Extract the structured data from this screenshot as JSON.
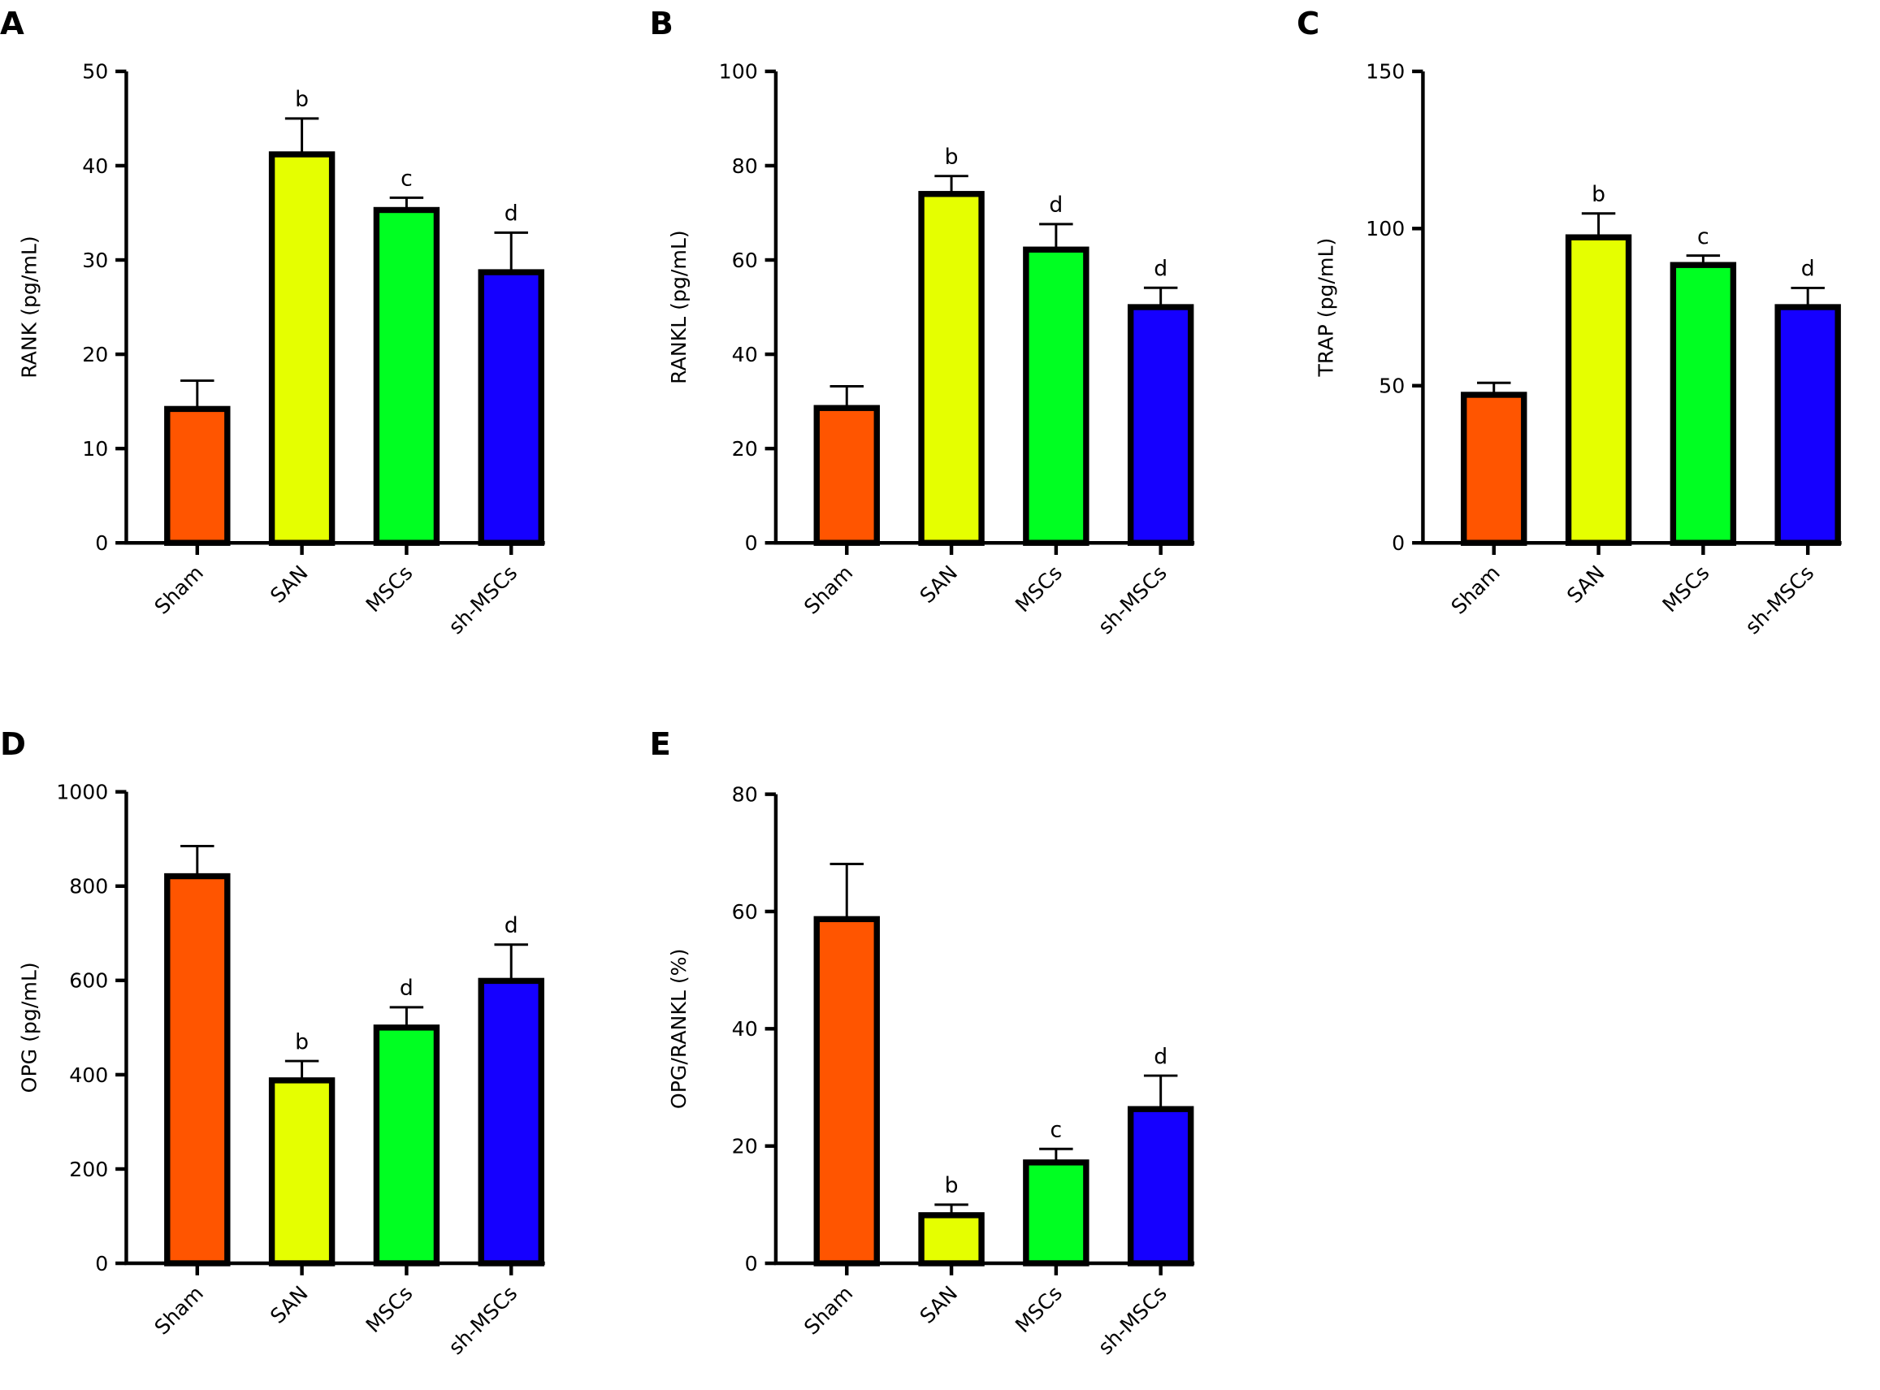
{
  "colors": {
    "Sham": "#ff5500",
    "SAN": "#e5ff00",
    "MSCs": "#00ff22",
    "sh-MSCs": "#1500ff"
  },
  "chart_data": [
    {
      "panel": "A",
      "type": "bar",
      "categories": [
        "Sham",
        "SAN",
        "MSCs",
        "sh-MSCs"
      ],
      "values": [
        14.2,
        41.2,
        35.3,
        28.7
      ],
      "errors": [
        3.0,
        3.8,
        1.3,
        4.2
      ],
      "sig_labels": [
        "",
        "b",
        "c",
        "d"
      ],
      "ylabel": "RANK (pg/mL)",
      "ylim": [
        0,
        50
      ],
      "yticks": [
        0,
        10,
        20,
        30,
        40,
        50
      ]
    },
    {
      "panel": "B",
      "type": "bar",
      "categories": [
        "Sham",
        "SAN",
        "MSCs",
        "sh-MSCs"
      ],
      "values": [
        28.6,
        74.0,
        62.2,
        50.0
      ],
      "errors": [
        4.6,
        3.8,
        5.4,
        4.1
      ],
      "sig_labels": [
        "",
        "b",
        "d",
        "d"
      ],
      "ylabel": "RANKL (pg/mL)",
      "ylim": [
        0,
        100
      ],
      "yticks": [
        0,
        20,
        40,
        60,
        80,
        100
      ]
    },
    {
      "panel": "C",
      "type": "bar",
      "categories": [
        "Sham",
        "SAN",
        "MSCs",
        "sh-MSCs"
      ],
      "values": [
        47.1,
        97.2,
        88.4,
        75.0
      ],
      "errors": [
        3.8,
        7.6,
        3.0,
        6.1
      ],
      "sig_labels": [
        "",
        "b",
        "c",
        "d"
      ],
      "ylabel": "TRAP (pg/mL)",
      "ylim": [
        0,
        150
      ],
      "yticks": [
        0,
        50,
        100,
        150
      ]
    },
    {
      "panel": "D",
      "type": "bar",
      "categories": [
        "Sham",
        "SAN",
        "MSCs",
        "sh-MSCs"
      ],
      "values": [
        821,
        388,
        500,
        599
      ],
      "errors": [
        64,
        41,
        43,
        77
      ],
      "sig_labels": [
        "",
        "b",
        "d",
        "d"
      ],
      "ylabel": "OPG (pg/mL)",
      "ylim": [
        0,
        1000
      ],
      "yticks": [
        0,
        200,
        400,
        600,
        800,
        1000
      ]
    },
    {
      "panel": "E",
      "type": "bar",
      "categories": [
        "Sham",
        "SAN",
        "MSCs",
        "sh-MSCs"
      ],
      "values": [
        58.7,
        8.2,
        17.2,
        26.3
      ],
      "errors": [
        9.4,
        1.8,
        2.3,
        5.7
      ],
      "sig_labels": [
        "",
        "b",
        "c",
        "d"
      ],
      "ylabel": "OPG/RANKL (%)",
      "ylim": [
        0,
        80
      ],
      "yticks": [
        0,
        20,
        40,
        60,
        80
      ]
    }
  ]
}
